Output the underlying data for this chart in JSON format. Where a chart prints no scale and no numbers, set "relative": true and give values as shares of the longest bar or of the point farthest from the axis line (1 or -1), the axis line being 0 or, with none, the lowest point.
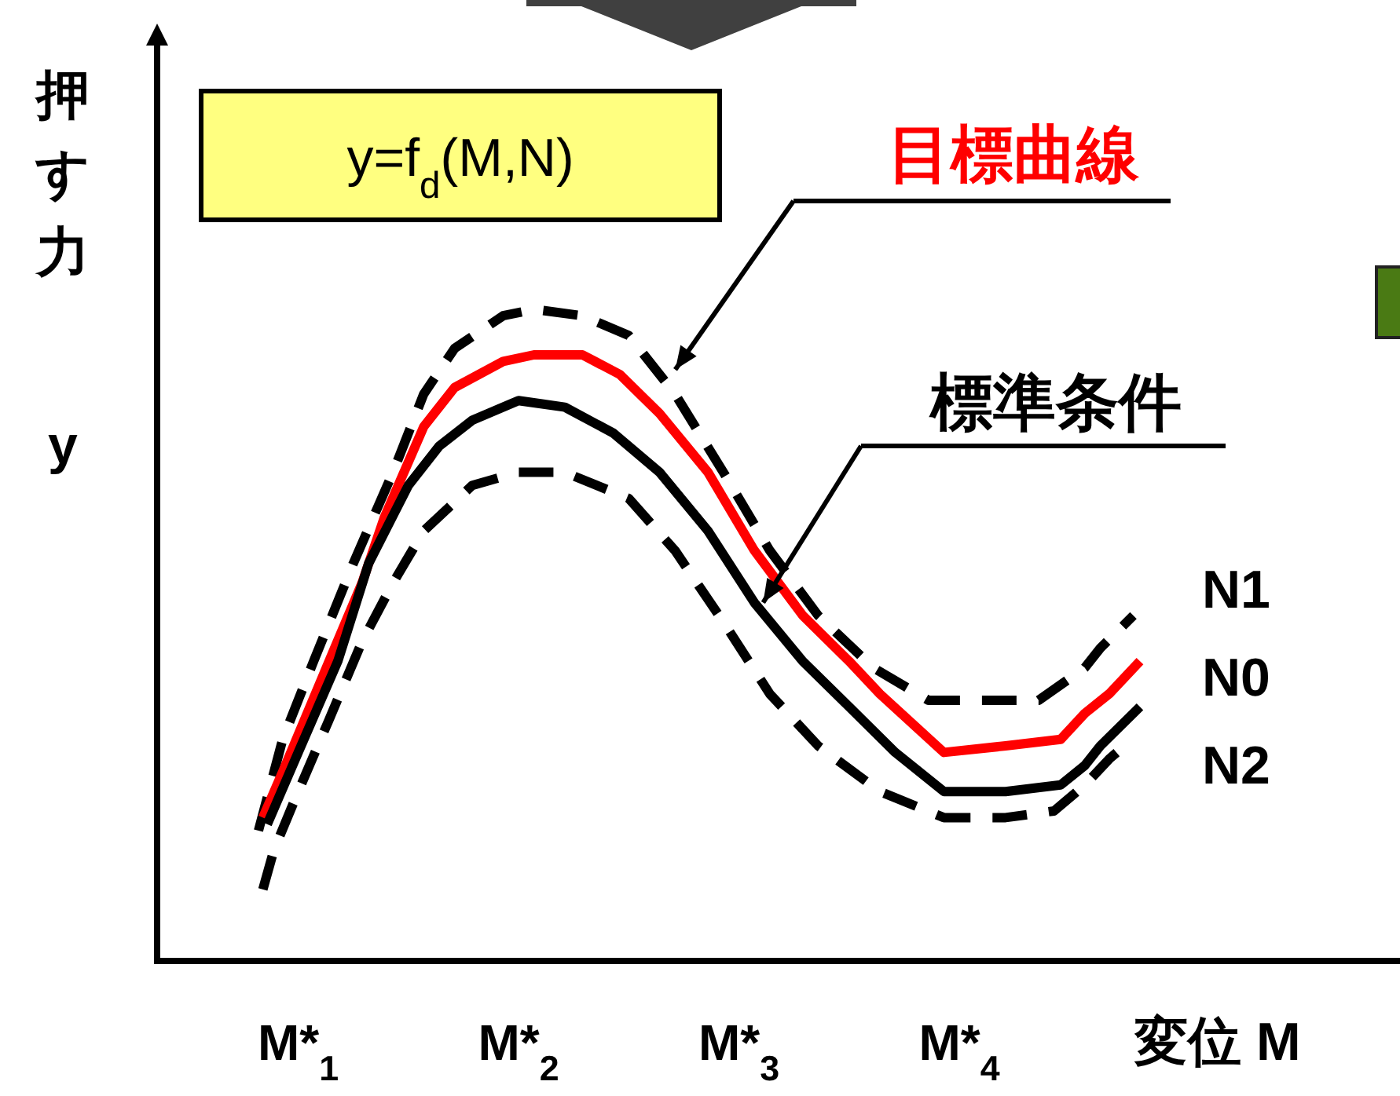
{
  "chart_data": {
    "type": "line",
    "relative": true,
    "ylabel": "押す力 y",
    "xlabel": "変位 M",
    "xlim": [
      0.36,
      6.0
    ],
    "xticks": [
      {
        "value": 1,
        "label": "M*$_{1}$"
      },
      {
        "value": 2,
        "label": "M*$_{2}$"
      },
      {
        "value": 3,
        "label": "M*$_{3}$"
      },
      {
        "value": 4,
        "label": "M*$_{4}$"
      }
    ],
    "annotations": [
      "y=f$_{d}$(M,N)",
      {
        "text": "標準条件",
        "x": 3.11,
        "y": 0.55
      }
    ],
    "series": [
      {
        "name": "N1",
        "color": "#000000",
        "line_style": "dashed",
        "x": [
          0.82,
          0.93,
          1.07,
          1.25,
          1.43,
          1.57,
          1.71,
          1.93,
          2.07,
          2.29,
          2.5,
          2.71,
          2.93,
          3.14,
          3.36,
          3.61,
          3.86,
          4.07,
          4.36,
          4.57,
          4.64,
          4.79
        ],
        "values": [
          0.2,
          0.34,
          0.46,
          0.61,
          0.75,
          0.87,
          0.94,
          0.99,
          1.0,
          0.99,
          0.96,
          0.87,
          0.75,
          0.63,
          0.53,
          0.45,
          0.4,
          0.4,
          0.4,
          0.45,
          0.48,
          0.53
        ]
      },
      {
        "name": "目標曲線",
        "color": "#ff0000",
        "x": [
          0.84,
          0.93,
          1.14,
          1.29,
          1.39,
          1.57,
          1.71,
          1.93,
          2.07,
          2.29,
          2.46,
          2.64,
          2.86,
          3.07,
          3.29,
          3.5,
          3.64,
          3.93,
          4.21,
          4.46,
          4.57,
          4.68,
          4.82
        ],
        "values": [
          0.22,
          0.29,
          0.46,
          0.58,
          0.68,
          0.82,
          0.88,
          0.92,
          0.93,
          0.93,
          0.9,
          0.84,
          0.75,
          0.63,
          0.53,
          0.46,
          0.41,
          0.32,
          0.33,
          0.34,
          0.38,
          0.41,
          0.46
        ]
      },
      {
        "name": "N0",
        "color": "#000000",
        "x": [
          0.86,
          1.0,
          1.18,
          1.32,
          1.5,
          1.64,
          1.79,
          2.0,
          2.21,
          2.43,
          2.64,
          2.86,
          3.07,
          3.29,
          3.5,
          3.71,
          3.93,
          4.21,
          4.46,
          4.57,
          4.64,
          4.82
        ],
        "values": [
          0.21,
          0.32,
          0.46,
          0.61,
          0.73,
          0.79,
          0.83,
          0.86,
          0.85,
          0.81,
          0.75,
          0.66,
          0.55,
          0.46,
          0.39,
          0.32,
          0.26,
          0.26,
          0.27,
          0.3,
          0.33,
          0.39
        ]
      },
      {
        "name": "N2",
        "color": "#000000",
        "line_style": "dashed",
        "x": [
          0.84,
          0.89,
          1.0,
          1.14,
          1.29,
          1.43,
          1.57,
          1.79,
          2.0,
          2.21,
          2.5,
          2.71,
          2.93,
          3.14,
          3.36,
          3.64,
          3.93,
          4.21,
          4.43,
          4.57,
          4.68,
          4.75
        ],
        "values": [
          0.11,
          0.17,
          0.26,
          0.37,
          0.49,
          0.58,
          0.66,
          0.73,
          0.75,
          0.75,
          0.71,
          0.63,
          0.52,
          0.41,
          0.33,
          0.26,
          0.22,
          0.22,
          0.23,
          0.27,
          0.31,
          0.33
        ]
      }
    ]
  }
}
